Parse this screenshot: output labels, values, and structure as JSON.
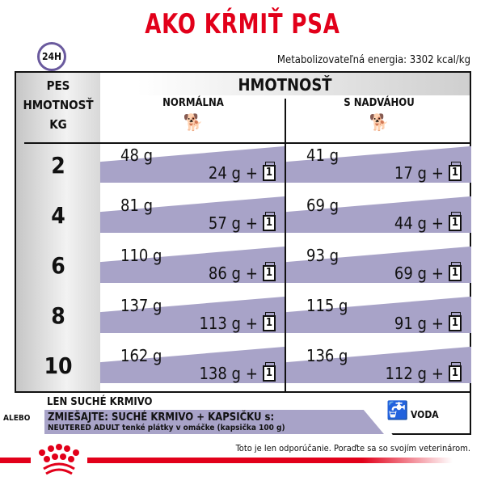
{
  "title": "AKO KŔMIŤ PSA",
  "clock_label": "24H",
  "energy": "Metabolizovateľná energia: 3302 kcal/kg",
  "table": {
    "left_header": [
      "PES",
      "HMOTNOSŤ",
      "KG"
    ],
    "top_header": "HMOTNOSŤ",
    "col_normal": "NORMÁLNA",
    "col_over": "S NADVÁHOU",
    "pouch_label": "1",
    "plus": "+",
    "rows": [
      {
        "kg": "2",
        "n_dry": "48 g",
        "n_mix": "24 g",
        "o_dry": "41 g",
        "o_mix": "17 g"
      },
      {
        "kg": "4",
        "n_dry": "81 g",
        "n_mix": "57 g",
        "o_dry": "69 g",
        "o_mix": "44 g"
      },
      {
        "kg": "6",
        "n_dry": "110 g",
        "n_mix": "86 g",
        "o_dry": "93 g",
        "o_mix": "69 g"
      },
      {
        "kg": "8",
        "n_dry": "137 g",
        "n_mix": "113 g",
        "o_dry": "115 g",
        "o_mix": "91 g"
      },
      {
        "kg": "10",
        "n_dry": "162 g",
        "n_mix": "138 g",
        "o_dry": "136 g",
        "o_mix": "112 g"
      }
    ]
  },
  "legend": {
    "dry_only": "LEN SUCHÉ KRMIVO",
    "or": "ALEBO",
    "mix_title": "ZMIEŠAJTE: SUCHÉ KRMIVO + KAPSIČKU s:",
    "mix_product": "NEUTERED ADULT tenké plátky v omáčke (kapsička 100 g)",
    "water": "VODA"
  },
  "note": "Toto je len odporúčanie. Poraďte sa so svojím veterinárom.",
  "colors": {
    "brand_red": "#e2001a",
    "band_purple": "#a8a3c8",
    "clock_purple": "#6a5a9e"
  }
}
